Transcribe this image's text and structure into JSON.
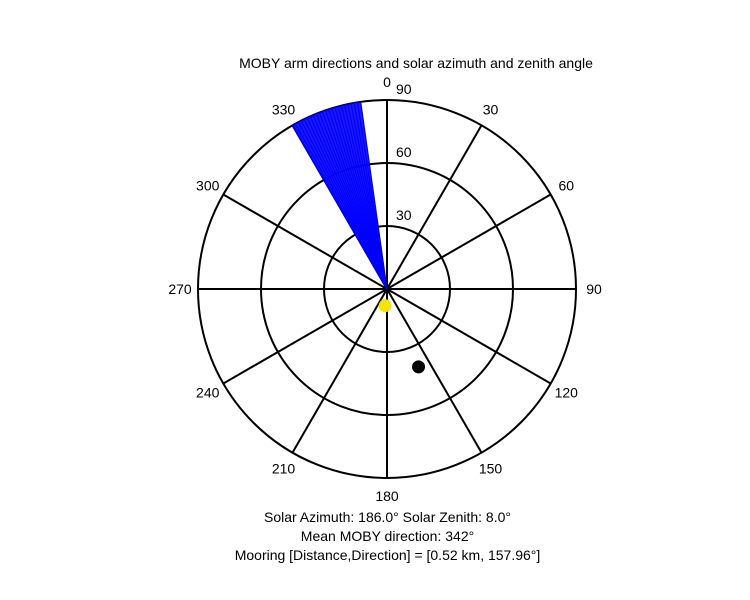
{
  "chart_data": {
    "type": "polar",
    "title": "MOBY arm directions and solar azimuth and zenith angle",
    "angular_axis": {
      "direction": "clockwise",
      "zero_at": "top",
      "tick_labels": [
        "0",
        "30",
        "60",
        "90",
        "120",
        "150",
        "180",
        "210",
        "240",
        "270",
        "300",
        "330"
      ]
    },
    "radial_axis": {
      "quantity": "zenith angle",
      "max": 90,
      "tick_values": [
        30,
        60,
        90
      ],
      "tick_labels": [
        "30",
        "60",
        "90"
      ]
    },
    "series": [
      {
        "kind": "arm-directions-fan",
        "color": "#0000ff",
        "radius": 90,
        "directions_deg": [
          330,
          331,
          332,
          333,
          334,
          335,
          336,
          337,
          338,
          339,
          340,
          341,
          342,
          343,
          344,
          345,
          346,
          347,
          348,
          349,
          350,
          351,
          352
        ]
      },
      {
        "kind": "point",
        "color": "#f5e400",
        "azimuth_deg": 186.0,
        "zenith_deg": 8.0
      },
      {
        "kind": "point",
        "color": "#000000",
        "azimuth_deg": 157.96,
        "zenith_deg": 40
      }
    ]
  },
  "captions": {
    "line1": "Solar Azimuth: 186.0°   Solar Zenith: 8.0°",
    "line2": "Mean MOBY direction: 342°",
    "line3": "Mooring [Distance,Direction] = [0.52 km, 157.96°]"
  }
}
